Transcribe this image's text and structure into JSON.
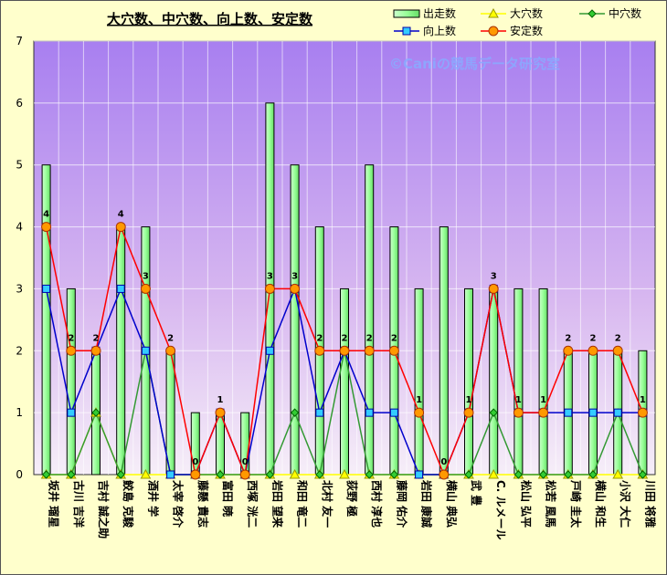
{
  "chart_data": {
    "type": "bar+line",
    "title": "大穴数、中穴数、向上数、安定数",
    "watermark": "©Caniの競馬データ研究室",
    "ylim": [
      0,
      7
    ],
    "yticks": [
      0,
      1,
      2,
      3,
      4,
      5,
      6,
      7
    ],
    "grid": true,
    "legend_position": "top-right",
    "categories": [
      "坂井 瑠星",
      "古川 吉洋",
      "吉村 誠之助",
      "鮫島 克駿",
      "酒井 学",
      "太宰 啓介",
      "藤懸 貴志",
      "富田 暁",
      "西塚 洸二",
      "岩田 望来",
      "和田 竜二",
      "北村 友一",
      "荻野 極",
      "西村 淳也",
      "藤岡 佑介",
      "岩田 康誠",
      "横山 典弘",
      "武 豊",
      "C. ルメール",
      "松山 弘平",
      "松若 風馬",
      "戸崎 圭太",
      "横山 和生",
      "小沢 大仁",
      "川田 将雅"
    ],
    "series": [
      {
        "name": "出走数",
        "kind": "bar",
        "color": "#99ff99",
        "values": [
          5,
          3,
          2,
          4,
          4,
          2,
          1,
          1,
          1,
          6,
          5,
          4,
          3,
          5,
          4,
          3,
          4,
          3,
          3,
          3,
          3,
          2,
          2,
          2,
          2
        ]
      },
      {
        "name": "大穴数",
        "kind": "line",
        "color": "#ffff00",
        "values": [
          0,
          0,
          1,
          0,
          0,
          0,
          0,
          0,
          0,
          0,
          0,
          0,
          0,
          0,
          0,
          0,
          0,
          0,
          0,
          0,
          0,
          0,
          0,
          0,
          0
        ]
      },
      {
        "name": "中穴数",
        "kind": "line",
        "color": "#339933",
        "values": [
          0,
          0,
          1,
          0,
          2,
          0,
          0,
          0,
          0,
          0,
          1,
          0,
          2,
          0,
          0,
          0,
          0,
          0,
          1,
          0,
          0,
          0,
          0,
          1,
          0
        ]
      },
      {
        "name": "向上数",
        "kind": "line",
        "color": "#0000cc",
        "values": [
          3,
          1,
          2,
          3,
          2,
          0,
          0,
          1,
          0,
          2,
          3,
          1,
          2,
          1,
          1,
          0,
          0,
          1,
          3,
          1,
          1,
          1,
          1,
          1,
          1
        ]
      },
      {
        "name": "安定数",
        "kind": "line",
        "color": "#ff0000",
        "values": [
          4,
          2,
          2,
          4,
          3,
          2,
          0,
          1,
          0,
          3,
          3,
          2,
          2,
          2,
          2,
          1,
          0,
          1,
          3,
          1,
          1,
          2,
          2,
          2,
          1
        ]
      }
    ],
    "data_labels": [
      4,
      2,
      2,
      4,
      3,
      2,
      0,
      1,
      0,
      3,
      3,
      2,
      2,
      2,
      2,
      1,
      0,
      1,
      3,
      1,
      1,
      2,
      2,
      2,
      1
    ]
  }
}
